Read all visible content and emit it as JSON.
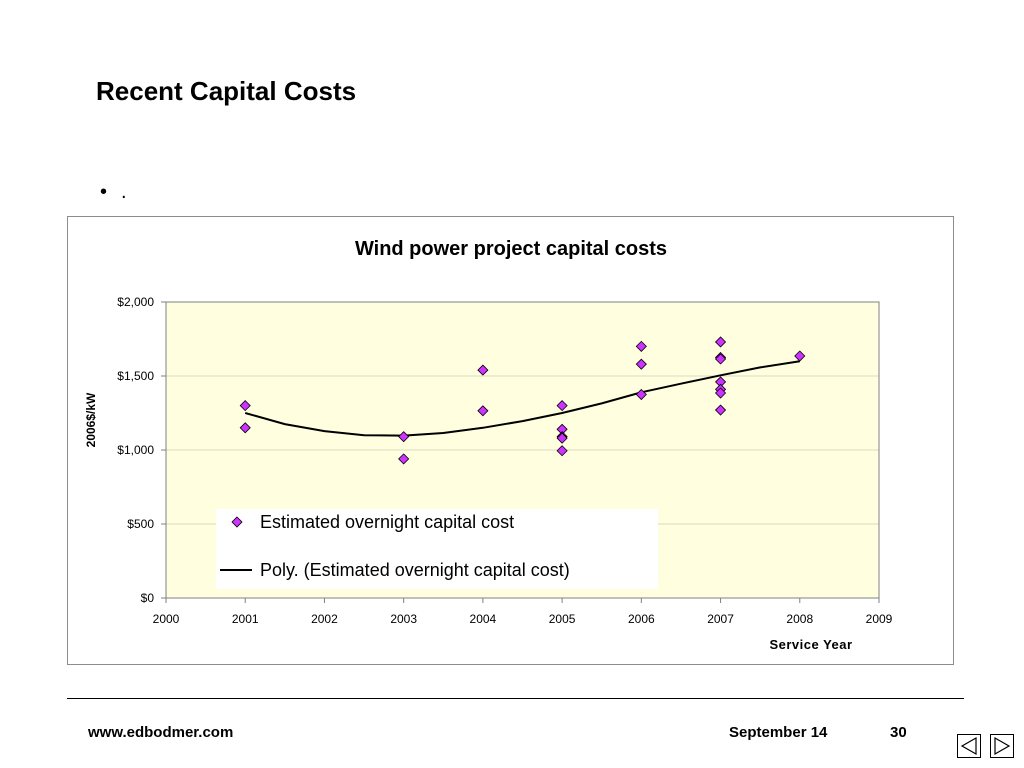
{
  "slide": {
    "title": "Recent Capital Costs",
    "bullet_glyph": "•",
    "bullet_text": "."
  },
  "footer": {
    "url": "www.edbodmer.com",
    "date": "September 14",
    "page": "30"
  },
  "nav": {
    "prev_icon": "triangle-left-icon",
    "next_icon": "triangle-right-icon"
  },
  "chart_data": {
    "type": "scatter",
    "title": "Wind power project capital costs",
    "xlabel": "Service Year",
    "ylabel": "2006$/kW",
    "xlim": [
      2000,
      2009
    ],
    "ylim": [
      0,
      2000
    ],
    "x_ticks": [
      2000,
      2001,
      2002,
      2003,
      2004,
      2005,
      2006,
      2007,
      2008,
      2009
    ],
    "x_tick_labels": [
      "2000",
      "2001",
      "2002",
      "2003",
      "2004",
      "2005",
      "2006",
      "2007",
      "2008",
      "2009"
    ],
    "y_ticks": [
      0,
      500,
      1000,
      1500,
      2000
    ],
    "y_tick_labels": [
      "$0",
      "$500",
      "$1,000",
      "$1,500",
      "$2,000"
    ],
    "grid": true,
    "plot_background": "#ffffe0",
    "marker_color": "#cc33ff",
    "series": [
      {
        "name": "Estimated overnight capital cost",
        "marker": "diamond",
        "points": [
          [
            2001,
            1300
          ],
          [
            2001,
            1150
          ],
          [
            2003,
            1090
          ],
          [
            2003,
            940
          ],
          [
            2004,
            1540
          ],
          [
            2004,
            1265
          ],
          [
            2005,
            1300
          ],
          [
            2005,
            1140
          ],
          [
            2005,
            1090
          ],
          [
            2005,
            1080
          ],
          [
            2005,
            995
          ],
          [
            2006,
            1700
          ],
          [
            2006,
            1580
          ],
          [
            2006,
            1375
          ],
          [
            2007,
            1730
          ],
          [
            2007,
            1625
          ],
          [
            2007,
            1615
          ],
          [
            2007,
            1460
          ],
          [
            2007,
            1410
          ],
          [
            2007,
            1385
          ],
          [
            2007,
            1270
          ],
          [
            2008,
            1635
          ]
        ]
      },
      {
        "name": "Poly. (Estimated overnight capital cost)",
        "line": "black",
        "points": [
          [
            2001,
            1250
          ],
          [
            2001.5,
            1175
          ],
          [
            2002,
            1128
          ],
          [
            2002.5,
            1100
          ],
          [
            2003,
            1097
          ],
          [
            2003.5,
            1115
          ],
          [
            2004,
            1150
          ],
          [
            2004.5,
            1195
          ],
          [
            2005,
            1250
          ],
          [
            2005.5,
            1315
          ],
          [
            2006,
            1390
          ],
          [
            2006.5,
            1448
          ],
          [
            2007,
            1505
          ],
          [
            2007.5,
            1558
          ],
          [
            2008,
            1600
          ]
        ]
      }
    ],
    "legend": {
      "placement": "bottom-center-inside",
      "entries": [
        "Estimated overnight capital cost",
        "Poly. (Estimated overnight capital cost)"
      ]
    }
  }
}
